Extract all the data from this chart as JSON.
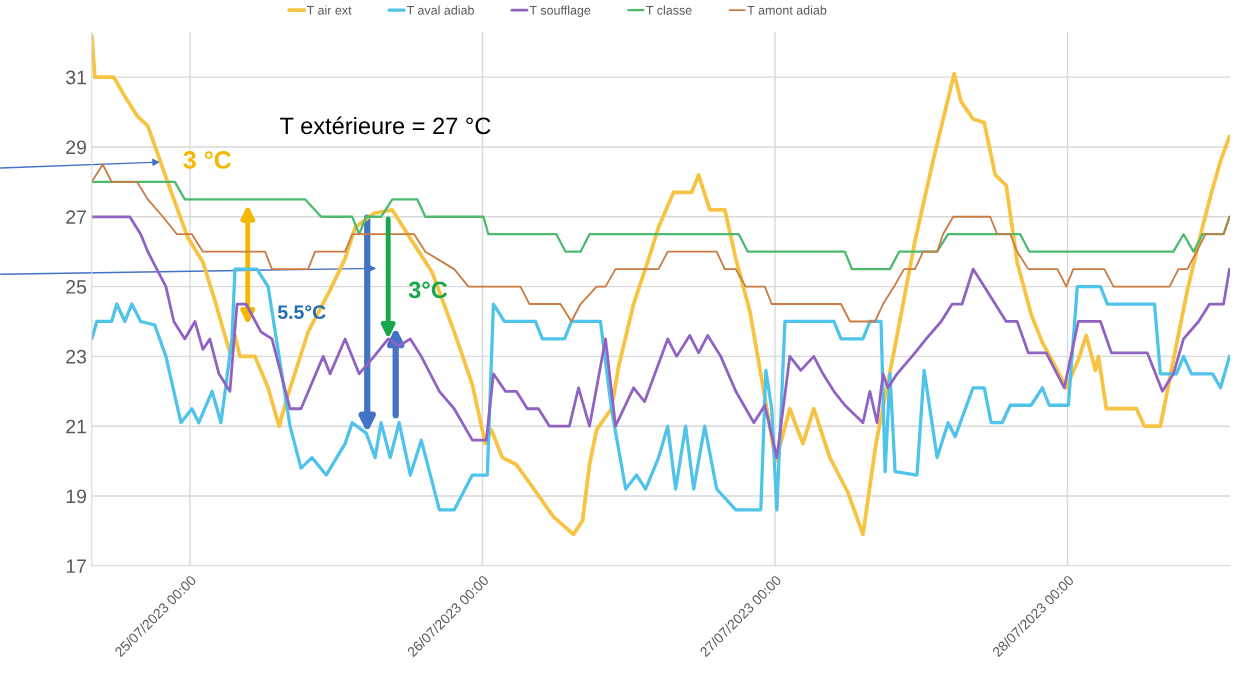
{
  "chart_data": {
    "type": "line",
    "ylim": [
      17,
      32.3
    ],
    "yticks": [
      17,
      19,
      21,
      23,
      25,
      27,
      29,
      31
    ],
    "xlim": [
      "2023-07-24T15:57",
      "2023-07-28T13:20"
    ],
    "xticks": [
      {
        "value": "2023-07-25T00:00",
        "label": "25/07/2023 00:00"
      },
      {
        "value": "2023-07-26T00:00",
        "label": "26/07/2023 00:00"
      },
      {
        "value": "2023-07-27T00:00",
        "label": "27/07/2023 00:00"
      },
      {
        "value": "2023-07-28T00:00",
        "label": "28/07/2023 00:00"
      }
    ],
    "grid": true,
    "legend": "top",
    "marker": "none",
    "line_style": "solid",
    "annotations": [
      "T extérieure = 27 °C",
      "3 °C",
      "5.5°C",
      {
        "text": "3°C",
        "x": "2023-07-25T16:16",
        "y": 23.5
      }
    ],
    "series": [
      {
        "name": "T air ext",
        "color": "#f6c343",
        "x": [
          "2023-07-24T15:57",
          "2023-07-24T16:12",
          "2023-07-24T17:45",
          "2023-07-24T18:45",
          "2023-07-24T19:39",
          "2023-07-24T20:33",
          "2023-07-24T22:41",
          "2023-07-24T23:50",
          "2023-07-25T01:04",
          "2023-07-25T02:03",
          "2023-07-25T03:17",
          "2023-07-25T03:42",
          "2023-07-25T04:06",
          "2023-07-25T05:20",
          "2023-07-25T06:25",
          "2023-07-25T07:19",
          "2023-07-25T08:03",
          "2023-07-25T09:42",
          "2023-07-25T11:30",
          "2023-07-25T12:44",
          "2023-07-25T13:34",
          "2023-07-25T15:07",
          "2023-07-25T16:36",
          "2023-07-25T17:30",
          "2023-07-25T19:53",
          "2023-07-25T21:41",
          "2023-07-25T23:10",
          "2023-07-26T00:14",
          "2023-07-26T00:44",
          "2023-07-26T01:38",
          "2023-07-26T02:47",
          "2023-07-26T04:01",
          "2023-07-26T05:50",
          "2023-07-26T07:28",
          "2023-07-26T08:13",
          "2023-07-26T08:47",
          "2023-07-26T09:22",
          "2023-07-26T10:35",
          "2023-07-26T11:10",
          "2023-07-26T12:24",
          "2023-07-26T13:33",
          "2023-07-26T14:27",
          "2023-07-26T15:41",
          "2023-07-26T17:10",
          "2023-07-26T17:44",
          "2023-07-26T18:39",
          "2023-07-26T19:53",
          "2023-07-26T20:47",
          "2023-07-26T21:56",
          "2023-07-26T22:50",
          "2023-07-27T00:04",
          "2023-07-27T01:13",
          "2023-07-27T02:17",
          "2023-07-27T03:11",
          "2023-07-27T04:30",
          "2023-07-27T05:59",
          "2023-07-27T07:13",
          "2023-07-27T08:17",
          "2023-07-27T10:01",
          "2023-07-27T11:29",
          "2023-07-27T12:58",
          "2023-07-27T13:52",
          "2023-07-27T14:42",
          "2023-07-27T15:16",
          "2023-07-27T16:15",
          "2023-07-27T17:10",
          "2023-07-27T18:04",
          "2023-07-27T18:58",
          "2023-07-27T19:52",
          "2023-07-27T21:01",
          "2023-07-27T21:56",
          "2023-07-27T23:10",
          "2023-07-27T23:54",
          "2023-07-28T00:53",
          "2023-07-28T01:32",
          "2023-07-28T02:17",
          "2023-07-28T02:32",
          "2023-07-28T03:11",
          "2023-07-28T05:39",
          "2023-07-28T06:19",
          "2023-07-28T07:37",
          "2023-07-28T08:41",
          "2023-07-28T09:50",
          "2023-07-28T11:04",
          "2023-07-28T11:49",
          "2023-07-28T12:33",
          "2023-07-28T13:17"
        ],
        "values": [
          32.2,
          31,
          31,
          30.4,
          29.9,
          29.6,
          27.5,
          26.4,
          25.7,
          24.6,
          23.1,
          23.6,
          23,
          23,
          22.1,
          21,
          21.9,
          23.7,
          24.9,
          25.8,
          26.7,
          27.1,
          27.2,
          26.7,
          25.4,
          23.7,
          22.2,
          20.5,
          20.9,
          20.1,
          19.9,
          19.3,
          18.4,
          17.9,
          18.3,
          19.9,
          20.9,
          21.5,
          22.7,
          24.5,
          25.7,
          26.7,
          27.7,
          27.7,
          28.2,
          27.2,
          27.2,
          25.8,
          24.3,
          22.5,
          20,
          21.5,
          20.5,
          21.5,
          20.1,
          19.1,
          17.9,
          20.5,
          23.6,
          26.3,
          28.6,
          29.9,
          31.1,
          30.3,
          29.8,
          29.7,
          28.2,
          27.9,
          25.7,
          24.2,
          23.4,
          22.6,
          22.1,
          22.9,
          23.6,
          22.6,
          23,
          21.5,
          21.5,
          21,
          21,
          22.9,
          24.9,
          26.7,
          27.7,
          28.6,
          29.3
        ]
      },
      {
        "name": "T aval adiab",
        "color": "#4fc3ea",
        "x": [
          "2023-07-24T15:57",
          "2023-07-24T16:22",
          "2023-07-24T17:35",
          "2023-07-24T18:00",
          "2023-07-24T18:40",
          "2023-07-24T19:14",
          "2023-07-24T19:58",
          "2023-07-24T21:07",
          "2023-07-24T22:02",
          "2023-07-24T23:16",
          "2023-07-25T00:10",
          "2023-07-25T00:44",
          "2023-07-25T01:49",
          "2023-07-25T02:33",
          "2023-07-25T03:27",
          "2023-07-25T03:42",
          "2023-07-25T05:30",
          "2023-07-25T06:25",
          "2023-07-25T07:19",
          "2023-07-25T08:13",
          "2023-07-25T09:07",
          "2023-07-25T10:01",
          "2023-07-25T11:11",
          "2023-07-25T12:44",
          "2023-07-25T13:19",
          "2023-07-25T14:28",
          "2023-07-25T15:12",
          "2023-07-25T15:41",
          "2023-07-25T16:26",
          "2023-07-25T17:10",
          "2023-07-25T18:05",
          "2023-07-25T18:59",
          "2023-07-25T20:28",
          "2023-07-25T21:41",
          "2023-07-25T23:10",
          "2023-07-26T00:24",
          "2023-07-26T00:54",
          "2023-07-26T01:48",
          "2023-07-26T04:21",
          "2023-07-26T04:55",
          "2023-07-26T06:44",
          "2023-07-26T07:18",
          "2023-07-26T09:41",
          "2023-07-26T10:35",
          "2023-07-26T11:45",
          "2023-07-26T12:39",
          "2023-07-26T13:23",
          "2023-07-26T14:27",
          "2023-07-26T15:12",
          "2023-07-26T15:51",
          "2023-07-26T16:40",
          "2023-07-26T17:20",
          "2023-07-26T18:14",
          "2023-07-26T19:13",
          "2023-07-26T20:47",
          "2023-07-26T22:50",
          "2023-07-26T23:15",
          "2023-07-26T23:44",
          "2023-07-27T00:09",
          "2023-07-27T00:49",
          "2023-07-27T04:50",
          "2023-07-27T05:25",
          "2023-07-27T07:13",
          "2023-07-27T07:47",
          "2023-07-27T08:42",
          "2023-07-27T09:02",
          "2023-07-27T09:26",
          "2023-07-27T09:51",
          "2023-07-27T11:39",
          "2023-07-27T12:14",
          "2023-07-27T13:18",
          "2023-07-27T14:12",
          "2023-07-27T14:47",
          "2023-07-27T16:15",
          "2023-07-27T17:10",
          "2023-07-27T17:44",
          "2023-07-27T18:38",
          "2023-07-27T19:18",
          "2023-07-27T21:01",
          "2023-07-27T21:56",
          "2023-07-27T22:30",
          "2023-07-28T00:04",
          "2023-07-28T00:48",
          "2023-07-28T02:42",
          "2023-07-28T03:16",
          "2023-07-28T07:08",
          "2023-07-28T07:37",
          "2023-07-28T08:56",
          "2023-07-28T09:31",
          "2023-07-28T10:10",
          "2023-07-28T11:54",
          "2023-07-28T12:33",
          "2023-07-28T13:17"
        ],
        "values": [
          23.5,
          24,
          24,
          24.5,
          24,
          24.5,
          24,
          23.9,
          23,
          21.1,
          21.5,
          21.1,
          22,
          21.1,
          23.5,
          25.5,
          25.5,
          25,
          23,
          21,
          19.8,
          20.1,
          19.6,
          20.5,
          21.1,
          20.8,
          20.1,
          21.1,
          20.1,
          21.1,
          19.6,
          20.6,
          18.6,
          18.6,
          19.6,
          19.6,
          24.5,
          24,
          24,
          23.5,
          23.5,
          24,
          24,
          21.5,
          19.2,
          19.6,
          19.2,
          20.1,
          21,
          19.2,
          21,
          19.2,
          21,
          19.2,
          18.6,
          18.6,
          22.6,
          21.5,
          18.6,
          24,
          24,
          23.5,
          23.5,
          24,
          24,
          19.7,
          22.5,
          19.7,
          19.6,
          22.6,
          20.1,
          21.1,
          20.7,
          22.1,
          22.1,
          21.1,
          21.1,
          21.6,
          21.6,
          22.1,
          21.6,
          21.6,
          25,
          25,
          24.5,
          24.5,
          22.5,
          22.5,
          23,
          22.5,
          22.5,
          22.1,
          23
        ]
      },
      {
        "name": "T soufflage",
        "color": "#9063c2",
        "x": [
          "2023-07-24T15:57",
          "2023-07-24T19:04",
          "2023-07-24T19:58",
          "2023-07-24T20:33",
          "2023-07-24T21:17",
          "2023-07-24T22:02",
          "2023-07-24T22:41",
          "2023-07-24T23:35",
          "2023-07-25T00:25",
          "2023-07-25T01:04",
          "2023-07-25T01:38",
          "2023-07-25T02:23",
          "2023-07-25T03:17",
          "2023-07-25T03:52",
          "2023-07-25T04:36",
          "2023-07-25T05:50",
          "2023-07-25T06:44",
          "2023-07-25T08:13",
          "2023-07-25T09:07",
          "2023-07-25T10:56",
          "2023-07-25T11:30",
          "2023-07-25T12:44",
          "2023-07-25T13:53",
          "2023-07-25T15:07",
          "2023-07-25T16:16",
          "2023-07-25T17:10",
          "2023-07-25T18:05",
          "2023-07-25T18:59",
          "2023-07-25T20:28",
          "2023-07-25T21:41",
          "2023-07-25T23:10",
          "2023-07-26T00:19",
          "2023-07-26T00:54",
          "2023-07-26T01:53",
          "2023-07-26T02:47",
          "2023-07-26T03:41",
          "2023-07-26T04:36",
          "2023-07-26T05:30",
          "2023-07-26T07:08",
          "2023-07-26T07:53",
          "2023-07-26T08:47",
          "2023-07-26T10:06",
          "2023-07-26T10:55",
          "2023-07-26T12:24",
          "2023-07-26T13:18",
          "2023-07-26T15:12",
          "2023-07-26T15:56",
          "2023-07-26T17:00",
          "2023-07-26T17:44",
          "2023-07-26T18:29",
          "2023-07-26T19:33",
          "2023-07-26T20:47",
          "2023-07-26T22:16",
          "2023-07-26T23:10",
          "2023-07-27T00:09",
          "2023-07-27T01:13",
          "2023-07-27T02:07",
          "2023-07-27T03:11",
          "2023-07-27T03:56",
          "2023-07-27T04:50",
          "2023-07-27T05:44",
          "2023-07-27T07:13",
          "2023-07-27T07:47",
          "2023-07-27T08:22",
          "2023-07-27T08:52",
          "2023-07-27T09:16",
          "2023-07-27T10:01",
          "2023-07-27T11:29",
          "2023-07-27T12:24",
          "2023-07-27T13:38",
          "2023-07-27T14:32",
          "2023-07-27T15:21",
          "2023-07-27T16:15",
          "2023-07-27T17:10",
          "2023-07-27T18:04",
          "2023-07-27T18:58",
          "2023-07-27T19:52",
          "2023-07-27T20:47",
          "2023-07-27T22:15",
          "2023-07-27T23:44",
          "2023-07-28T00:53",
          "2023-07-28T02:42",
          "2023-07-28T03:36",
          "2023-07-28T06:33",
          "2023-07-28T07:47",
          "2023-07-28T08:41",
          "2023-07-28T09:31",
          "2023-07-28T10:45",
          "2023-07-28T11:39",
          "2023-07-28T12:48",
          "2023-07-28T13:17"
        ],
        "values": [
          27,
          27,
          26.5,
          26,
          25.5,
          25,
          24,
          23.5,
          24,
          23.2,
          23.5,
          22.5,
          22,
          24.5,
          24.5,
          23.7,
          23.5,
          21.5,
          21.5,
          23,
          22.5,
          23.5,
          22.5,
          23,
          23.5,
          23.3,
          23.5,
          23,
          22,
          21.5,
          20.6,
          20.6,
          22.5,
          22,
          22,
          21.5,
          21.5,
          21,
          21,
          22.1,
          21,
          23.5,
          21,
          22.1,
          21.7,
          23.5,
          23,
          23.6,
          23.1,
          23.6,
          23,
          22,
          21.1,
          21.6,
          20.1,
          23,
          22.6,
          23,
          22.5,
          22,
          21.6,
          21.1,
          22,
          21.1,
          22.5,
          22.1,
          22.5,
          23.1,
          23.5,
          24,
          24.5,
          24.5,
          25.5,
          25,
          24.5,
          24,
          24,
          23.1,
          23.1,
          22.1,
          24,
          24,
          23.1,
          23.1,
          22,
          22.5,
          23.5,
          24,
          24.5,
          24.5,
          25.5
        ]
      },
      {
        "name": "T classe",
        "color": "#4dba6e",
        "x": [
          "2023-07-24T15:57",
          "2023-07-24T22:46",
          "2023-07-24T23:35",
          "2023-07-25T09:27",
          "2023-07-25T10:46",
          "2023-07-25T13:19",
          "2023-07-25T13:53",
          "2023-07-25T14:28",
          "2023-07-25T15:41",
          "2023-07-25T16:36",
          "2023-07-25T18:39",
          "2023-07-25T19:19",
          "2023-07-26T00:05",
          "2023-07-26T00:29",
          "2023-07-26T06:04",
          "2023-07-26T06:49",
          "2023-07-26T08:03",
          "2023-07-26T08:47",
          "2023-07-26T21:02",
          "2023-07-26T21:46",
          "2023-07-27T05:44",
          "2023-07-27T06:19",
          "2023-07-27T09:26",
          "2023-07-27T10:11",
          "2023-07-27T13:18",
          "2023-07-27T14:12",
          "2023-07-27T20:07",
          "2023-07-27T20:52",
          "2023-07-28T08:41",
          "2023-07-28T09:31",
          "2023-07-28T10:20",
          "2023-07-28T11:04",
          "2023-07-28T12:48",
          "2023-07-28T13:17"
        ],
        "values": [
          28,
          28,
          27.5,
          27.5,
          27,
          27,
          26.5,
          27,
          27,
          27.5,
          27.5,
          27,
          27,
          26.5,
          26.5,
          26,
          26,
          26.5,
          26.5,
          26,
          26,
          25.5,
          25.5,
          26,
          26,
          26.5,
          26.5,
          26,
          26,
          26.5,
          26,
          26.5,
          26.5,
          27
        ]
      },
      {
        "name": "T amont adiab",
        "color": "#c97b42",
        "x": [
          "2023-07-24T15:57",
          "2023-07-24T16:51",
          "2023-07-24T17:35",
          "2023-07-24T19:39",
          "2023-07-24T20:33",
          "2023-07-24T21:47",
          "2023-07-24T22:56",
          "2023-07-25T00:10",
          "2023-07-25T01:04",
          "2023-07-25T06:10",
          "2023-07-25T06:44",
          "2023-07-25T09:42",
          "2023-07-25T10:16",
          "2023-07-25T12:44",
          "2023-07-25T13:19",
          "2023-07-25T18:24",
          "2023-07-25T19:19",
          "2023-07-25T21:41",
          "2023-07-25T22:51",
          "2023-07-26T03:07",
          "2023-07-26T03:51",
          "2023-07-26T06:24",
          "2023-07-26T07:18",
          "2023-07-26T08:03",
          "2023-07-26T09:22",
          "2023-07-26T10:06",
          "2023-07-26T10:55",
          "2023-07-26T14:27",
          "2023-07-26T15:12",
          "2023-07-26T19:13",
          "2023-07-26T19:53",
          "2023-07-26T20:47",
          "2023-07-26T21:36",
          "2023-07-26T23:10",
          "2023-07-26T23:44",
          "2023-07-27T05:25",
          "2023-07-27T06:09",
          "2023-07-27T08:12",
          "2023-07-27T08:52",
          "2023-07-27T09:46",
          "2023-07-27T10:35",
          "2023-07-27T11:29",
          "2023-07-27T12:09",
          "2023-07-27T13:18",
          "2023-07-27T13:47",
          "2023-07-27T14:37",
          "2023-07-27T17:39",
          "2023-07-27T18:14",
          "2023-07-27T19:18",
          "2023-07-27T19:52",
          "2023-07-27T20:47",
          "2023-07-27T23:10",
          "2023-07-27T23:54",
          "2023-07-28T00:28",
          "2023-07-28T03:01",
          "2023-07-28T03:46",
          "2023-07-28T08:22",
          "2023-07-28T09:06",
          "2023-07-28T09:50",
          "2023-07-28T10:35",
          "2023-07-28T11:19",
          "2023-07-28T12:48",
          "2023-07-28T13:17"
        ],
        "values": [
          28,
          28.5,
          28,
          28,
          27.5,
          27,
          26.5,
          26.5,
          26,
          26,
          25.5,
          25.5,
          26,
          26,
          26.5,
          26.5,
          26,
          25.5,
          25,
          25,
          24.5,
          24.5,
          24,
          24.5,
          25,
          25,
          25.5,
          25.5,
          26,
          26,
          25.5,
          25.5,
          25,
          25,
          24.5,
          24.5,
          24,
          24,
          24.5,
          25,
          25.5,
          25.5,
          26,
          26,
          26.5,
          27,
          27,
          26.5,
          26.5,
          26,
          25.5,
          25.5,
          25,
          25.5,
          25.5,
          25,
          25,
          25.5,
          25.5,
          26,
          26.5,
          26.5,
          27
        ]
      }
    ]
  }
}
